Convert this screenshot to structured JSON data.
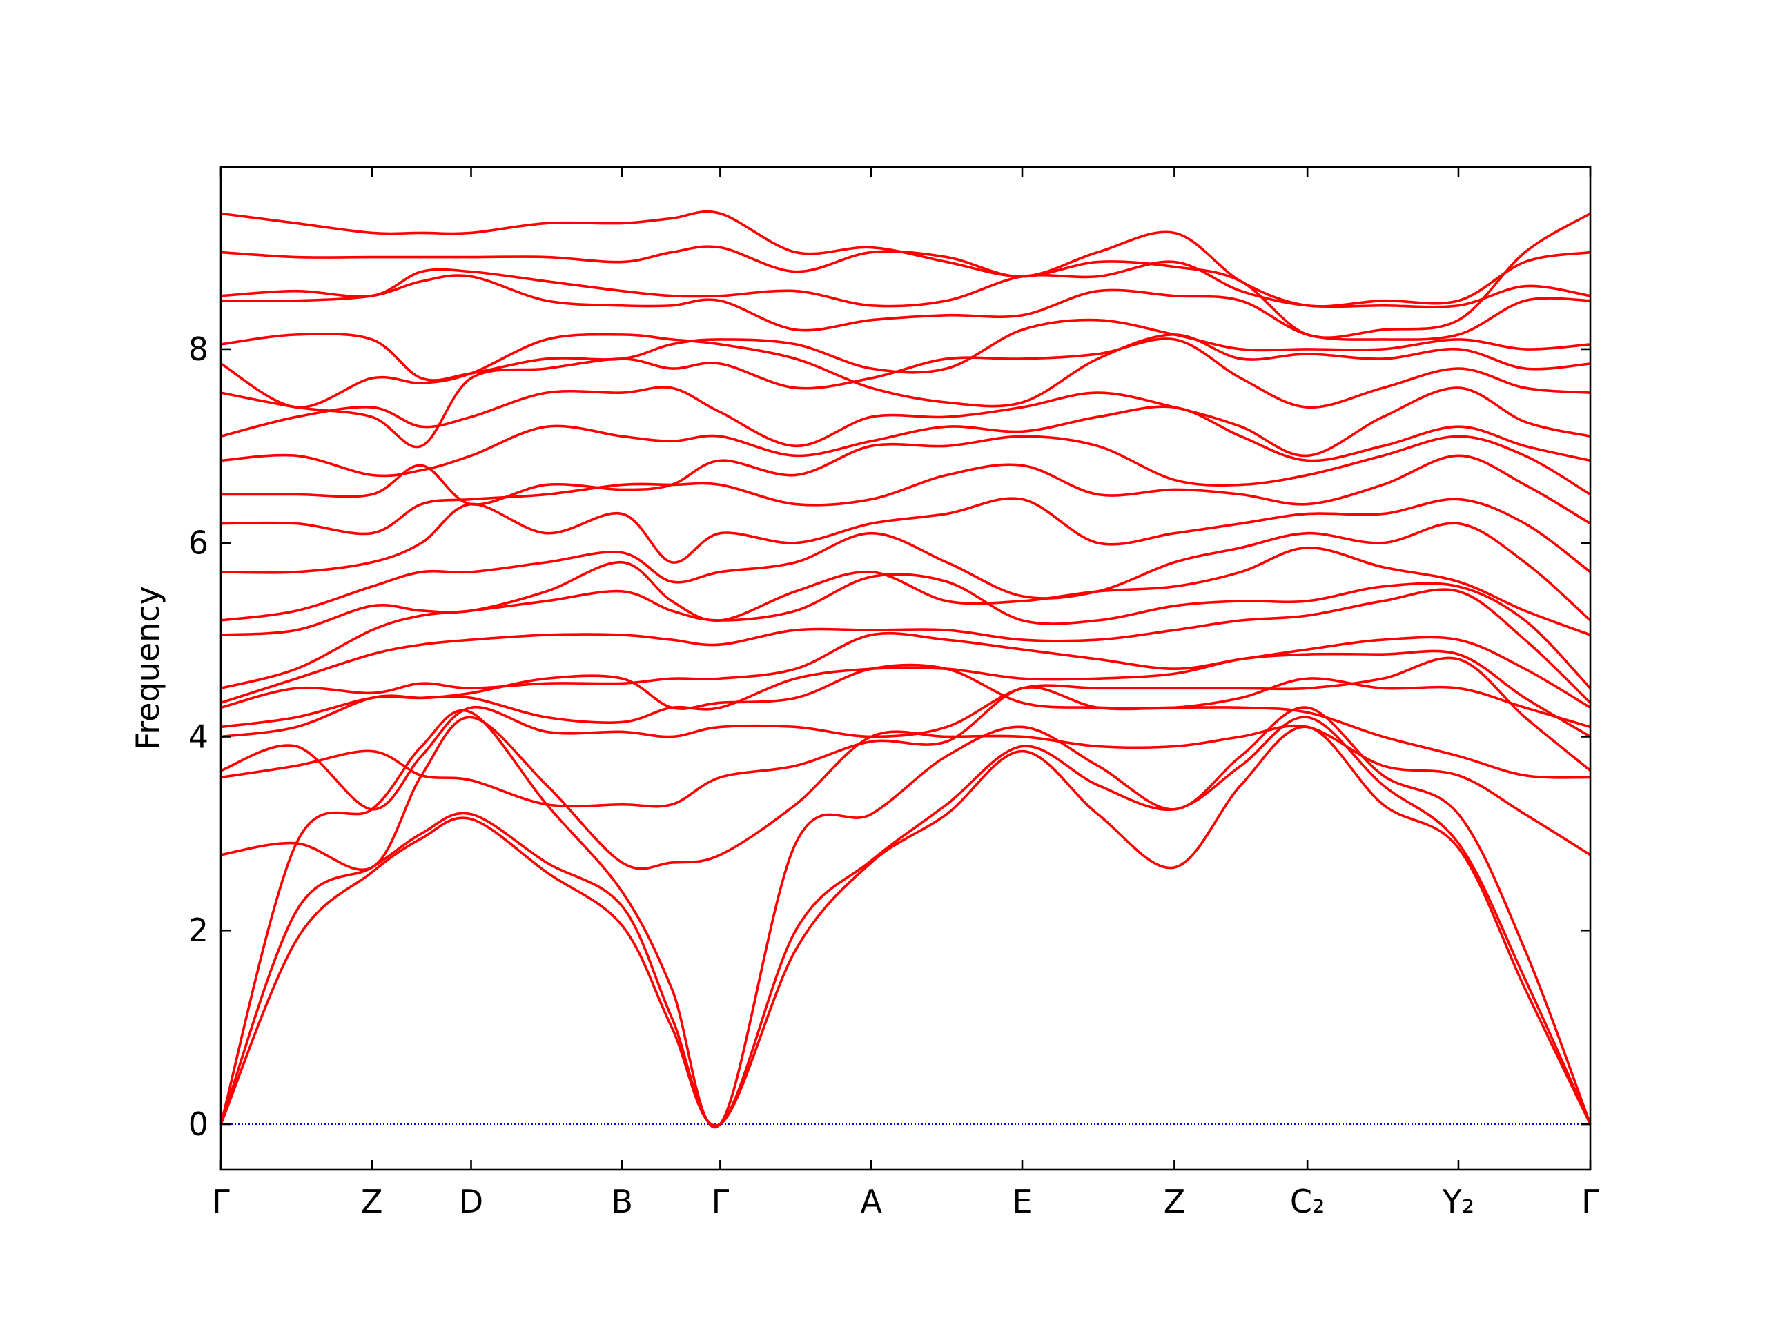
{
  "chart_data": {
    "type": "line",
    "y_label": "Frequency",
    "color": "#ff0000",
    "xlim": [
      0,
      12.15
    ],
    "xticks": [
      {
        "value": 0,
        "label": "Γ"
      },
      {
        "value": 1.34,
        "label": "Z"
      },
      {
        "value": 2.22,
        "label": "D"
      },
      {
        "value": 3.56,
        "label": "B"
      },
      {
        "value": 4.43,
        "label": "Γ"
      },
      {
        "value": 5.77,
        "label": "A"
      },
      {
        "value": 7.11,
        "label": "E"
      },
      {
        "value": 8.46,
        "label": "Z"
      },
      {
        "value": 9.64,
        "label": "C₂"
      },
      {
        "value": 10.98,
        "label": "Y₂"
      },
      {
        "value": 12.15,
        "label": "Γ"
      }
    ],
    "ylim": [
      -0.47,
      9.88
    ],
    "yticks": [
      0,
      2,
      4,
      6,
      8
    ],
    "zero_line": {
      "y": 0,
      "color": "#0000ff"
    },
    "x": [
      0,
      0.67,
      1.34,
      1.78,
      2.22,
      2.89,
      3.56,
      4.0,
      4.43,
      5.1,
      5.77,
      6.44,
      7.11,
      7.78,
      8.46,
      9.05,
      9.64,
      10.31,
      10.98,
      11.57,
      12.15
    ],
    "series": [
      {
        "values": [
          0,
          1.9,
          2.6,
          2.95,
          3.15,
          2.6,
          2.05,
          1.0,
          0,
          1.8,
          2.7,
          3.2,
          3.85,
          3.2,
          2.65,
          3.5,
          4.1,
          3.3,
          2.85,
          1.4,
          0
        ]
      },
      {
        "values": [
          0,
          2.2,
          2.65,
          3.0,
          3.2,
          2.7,
          2.25,
          1.1,
          0,
          2.0,
          2.72,
          3.3,
          3.9,
          3.5,
          3.25,
          3.7,
          4.2,
          3.5,
          2.9,
          1.5,
          0
        ]
      },
      {
        "values": [
          0,
          2.9,
          3.25,
          3.9,
          4.25,
          3.3,
          2.4,
          1.4,
          0,
          2.9,
          3.2,
          3.8,
          4.1,
          3.7,
          3.25,
          3.8,
          4.3,
          3.6,
          3.2,
          1.8,
          0
        ]
      },
      {
        "values": [
          2.78,
          2.9,
          2.65,
          3.6,
          4.2,
          3.5,
          2.7,
          2.7,
          2.78,
          3.3,
          4.0,
          4.0,
          4.0,
          3.9,
          3.9,
          4.0,
          4.1,
          3.7,
          3.6,
          3.2,
          2.78
        ]
      },
      {
        "values": [
          3.58,
          3.7,
          3.85,
          3.6,
          3.55,
          3.3,
          3.3,
          3.3,
          3.58,
          3.7,
          3.95,
          3.95,
          4.5,
          4.3,
          4.3,
          4.3,
          4.25,
          4.0,
          3.8,
          3.6,
          3.58
        ]
      },
      {
        "values": [
          3.65,
          3.9,
          3.25,
          3.8,
          4.3,
          4.05,
          4.05,
          4.0,
          4.1,
          4.1,
          4.0,
          4.1,
          4.5,
          4.5,
          4.5,
          4.5,
          4.5,
          4.6,
          4.8,
          4.2,
          3.65
        ]
      },
      {
        "values": [
          4.0,
          4.1,
          4.4,
          4.4,
          4.4,
          4.2,
          4.15,
          4.3,
          4.3,
          4.6,
          4.7,
          4.7,
          4.6,
          4.6,
          4.65,
          4.8,
          4.85,
          4.85,
          4.85,
          4.4,
          4.0
        ]
      },
      {
        "values": [
          4.1,
          4.2,
          4.4,
          4.4,
          4.45,
          4.6,
          4.6,
          4.3,
          4.35,
          4.4,
          4.7,
          4.7,
          4.35,
          4.3,
          4.3,
          4.4,
          4.6,
          4.5,
          4.5,
          4.3,
          4.1
        ]
      },
      {
        "values": [
          4.3,
          4.5,
          4.45,
          4.55,
          4.5,
          4.55,
          4.55,
          4.6,
          4.6,
          4.7,
          5.05,
          5.0,
          4.9,
          4.8,
          4.7,
          4.8,
          4.9,
          5.0,
          5.0,
          4.7,
          4.3
        ]
      },
      {
        "values": [
          4.35,
          4.6,
          4.85,
          4.95,
          5.0,
          5.05,
          5.05,
          5.0,
          4.95,
          5.1,
          5.1,
          5.1,
          5.0,
          5.0,
          5.1,
          5.2,
          5.25,
          5.4,
          5.5,
          5.0,
          4.35
        ]
      },
      {
        "values": [
          4.5,
          4.7,
          5.1,
          5.25,
          5.3,
          5.4,
          5.5,
          5.3,
          5.2,
          5.3,
          5.65,
          5.6,
          5.2,
          5.2,
          5.35,
          5.4,
          5.4,
          5.55,
          5.55,
          5.2,
          4.5
        ]
      },
      {
        "values": [
          5.05,
          5.1,
          5.35,
          5.3,
          5.3,
          5.5,
          5.8,
          5.4,
          5.2,
          5.5,
          5.7,
          5.4,
          5.4,
          5.5,
          5.55,
          5.7,
          5.95,
          5.75,
          5.6,
          5.3,
          5.05
        ]
      },
      {
        "values": [
          5.2,
          5.3,
          5.55,
          5.7,
          5.7,
          5.8,
          5.9,
          5.6,
          5.7,
          5.8,
          6.1,
          5.8,
          5.45,
          5.5,
          5.8,
          5.95,
          6.1,
          6.0,
          6.2,
          5.8,
          5.2
        ]
      },
      {
        "values": [
          5.7,
          5.7,
          5.8,
          6.0,
          6.4,
          6.1,
          6.3,
          5.8,
          6.1,
          6.0,
          6.2,
          6.3,
          6.45,
          6.0,
          6.1,
          6.2,
          6.3,
          6.3,
          6.45,
          6.2,
          5.7
        ]
      },
      {
        "values": [
          6.2,
          6.2,
          6.1,
          6.4,
          6.45,
          6.5,
          6.6,
          6.6,
          6.6,
          6.4,
          6.45,
          6.7,
          6.8,
          6.5,
          6.55,
          6.5,
          6.4,
          6.6,
          6.9,
          6.6,
          6.2
        ]
      },
      {
        "values": [
          6.5,
          6.5,
          6.5,
          6.8,
          6.4,
          6.6,
          6.55,
          6.6,
          6.85,
          6.7,
          7.0,
          7.0,
          7.1,
          7.0,
          6.65,
          6.6,
          6.7,
          6.9,
          7.1,
          6.9,
          6.5
        ]
      },
      {
        "values": [
          6.85,
          6.9,
          6.7,
          6.75,
          6.9,
          7.2,
          7.1,
          7.05,
          7.1,
          6.9,
          7.05,
          7.2,
          7.15,
          7.3,
          7.4,
          7.1,
          6.85,
          7.0,
          7.2,
          7.0,
          6.85
        ]
      },
      {
        "values": [
          7.1,
          7.3,
          7.4,
          7.2,
          7.3,
          7.55,
          7.55,
          7.6,
          7.35,
          7.0,
          7.3,
          7.3,
          7.4,
          7.55,
          7.4,
          7.2,
          6.9,
          7.3,
          7.6,
          7.25,
          7.1
        ]
      },
      {
        "values": [
          7.55,
          7.4,
          7.3,
          7.0,
          7.7,
          7.8,
          7.9,
          7.8,
          7.85,
          7.6,
          7.7,
          7.9,
          7.9,
          7.95,
          8.1,
          7.7,
          7.4,
          7.6,
          7.8,
          7.6,
          7.55
        ]
      },
      {
        "values": [
          7.85,
          7.4,
          7.7,
          7.65,
          7.75,
          8.1,
          8.15,
          8.1,
          8.05,
          7.9,
          7.6,
          7.45,
          7.45,
          7.9,
          8.15,
          7.9,
          7.95,
          7.9,
          8.0,
          7.8,
          7.85
        ]
      },
      {
        "values": [
          8.05,
          8.15,
          8.1,
          7.7,
          7.75,
          7.9,
          7.9,
          8.05,
          8.1,
          8.05,
          7.8,
          7.8,
          8.2,
          8.3,
          8.15,
          8.0,
          8.0,
          8.0,
          8.1,
          8.0,
          8.05
        ]
      },
      {
        "values": [
          8.5,
          8.5,
          8.55,
          8.7,
          8.75,
          8.5,
          8.45,
          8.45,
          8.5,
          8.2,
          8.3,
          8.35,
          8.35,
          8.6,
          8.55,
          8.5,
          8.15,
          8.1,
          8.15,
          8.5,
          8.5
        ]
      },
      {
        "values": [
          8.55,
          8.6,
          8.55,
          8.8,
          8.8,
          8.7,
          8.6,
          8.55,
          8.55,
          8.6,
          8.45,
          8.5,
          8.75,
          8.75,
          8.9,
          8.6,
          8.45,
          8.45,
          8.45,
          8.65,
          8.55
        ]
      },
      {
        "values": [
          9.0,
          8.95,
          8.95,
          8.95,
          8.95,
          8.95,
          8.9,
          9.0,
          9.05,
          8.8,
          9.0,
          8.95,
          8.75,
          9.0,
          9.2,
          8.7,
          8.45,
          8.5,
          8.5,
          8.9,
          9.0
        ]
      },
      {
        "values": [
          9.4,
          9.3,
          9.2,
          9.2,
          9.2,
          9.3,
          9.3,
          9.35,
          9.4,
          9.0,
          9.05,
          8.9,
          8.75,
          8.9,
          8.85,
          8.7,
          8.15,
          8.2,
          8.3,
          9.0,
          9.4
        ]
      }
    ]
  }
}
